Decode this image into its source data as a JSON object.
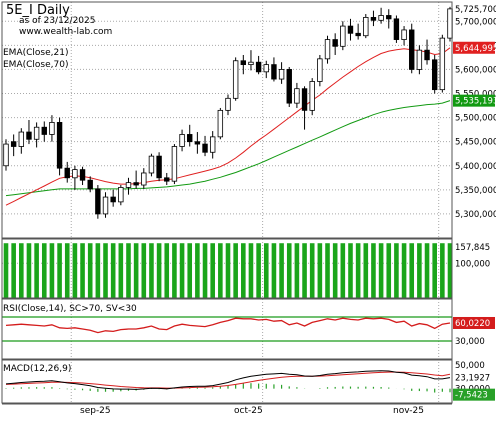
{
  "header": {
    "symbol": "5E_I Daily",
    "as_of": "as of 23/12/2025",
    "url": "www.wealth-lab.com",
    "ema21_label": "EMA(Close,21)",
    "ema70_label": "EMA(Close,70)"
  },
  "colors": {
    "up_fill": "#ffffff",
    "down_fill": "#000000",
    "ema21": "#e02020",
    "ema70": "#129a12",
    "volume": "#1aa51a",
    "rsi": "#d41c1c",
    "rsi_band": "#1a9a1a",
    "macd": "#000000",
    "macd_signal": "#d62020",
    "macd_hist": "#28a028",
    "grid": "#a9a9a9"
  },
  "chart_data": [
    {
      "type": "candlestick",
      "pane": "price",
      "ylim": [
        5250000,
        5740000
      ],
      "yticks": [
        "5,300,000",
        "5,350,000",
        "5,400,000",
        "5,450,000",
        "5,500,000",
        "5,550,000",
        "5,600,000",
        "5,650,000",
        "5,700,000"
      ],
      "xlabels": [
        "sep-25",
        "oct-25",
        "nov-25"
      ],
      "xlabel_index": [
        8,
        33,
        56
      ],
      "candles": [
        {
          "o": 5400000,
          "h": 5455000,
          "l": 5390000,
          "c": 5445000
        },
        {
          "o": 5450000,
          "h": 5465000,
          "l": 5420000,
          "c": 5440000
        },
        {
          "o": 5440000,
          "h": 5478000,
          "l": 5425000,
          "c": 5470000
        },
        {
          "o": 5470000,
          "h": 5495000,
          "l": 5445000,
          "c": 5455000
        },
        {
          "o": 5455000,
          "h": 5490000,
          "l": 5438000,
          "c": 5480000
        },
        {
          "o": 5480000,
          "h": 5492000,
          "l": 5450000,
          "c": 5465000
        },
        {
          "o": 5465000,
          "h": 5505000,
          "l": 5450000,
          "c": 5490000
        },
        {
          "o": 5490000,
          "h": 5500000,
          "l": 5380000,
          "c": 5395000
        },
        {
          "o": 5395000,
          "h": 5408000,
          "l": 5365000,
          "c": 5375000
        },
        {
          "o": 5375000,
          "h": 5400000,
          "l": 5350000,
          "c": 5392000
        },
        {
          "o": 5392000,
          "h": 5398000,
          "l": 5360000,
          "c": 5370000
        },
        {
          "o": 5370000,
          "h": 5378000,
          "l": 5345000,
          "c": 5352000
        },
        {
          "o": 5352000,
          "h": 5360000,
          "l": 5290000,
          "c": 5300000
        },
        {
          "o": 5300000,
          "h": 5345000,
          "l": 5292000,
          "c": 5335000
        },
        {
          "o": 5335000,
          "h": 5350000,
          "l": 5315000,
          "c": 5325000
        },
        {
          "o": 5325000,
          "h": 5360000,
          "l": 5318000,
          "c": 5355000
        },
        {
          "o": 5355000,
          "h": 5375000,
          "l": 5340000,
          "c": 5365000
        },
        {
          "o": 5365000,
          "h": 5390000,
          "l": 5352000,
          "c": 5360000
        },
        {
          "o": 5360000,
          "h": 5395000,
          "l": 5352000,
          "c": 5385000
        },
        {
          "o": 5385000,
          "h": 5425000,
          "l": 5378000,
          "c": 5420000
        },
        {
          "o": 5420000,
          "h": 5428000,
          "l": 5368000,
          "c": 5375000
        },
        {
          "o": 5375000,
          "h": 5385000,
          "l": 5360000,
          "c": 5368000
        },
        {
          "o": 5368000,
          "h": 5445000,
          "l": 5362000,
          "c": 5440000
        },
        {
          "o": 5440000,
          "h": 5475000,
          "l": 5430000,
          "c": 5465000
        },
        {
          "o": 5465000,
          "h": 5485000,
          "l": 5440000,
          "c": 5450000
        },
        {
          "o": 5450000,
          "h": 5470000,
          "l": 5425000,
          "c": 5445000
        },
        {
          "o": 5445000,
          "h": 5462000,
          "l": 5420000,
          "c": 5428000
        },
        {
          "o": 5428000,
          "h": 5472000,
          "l": 5415000,
          "c": 5460000
        },
        {
          "o": 5460000,
          "h": 5520000,
          "l": 5455000,
          "c": 5515000
        },
        {
          "o": 5515000,
          "h": 5548000,
          "l": 5505000,
          "c": 5540000
        },
        {
          "o": 5540000,
          "h": 5625000,
          "l": 5535000,
          "c": 5618000
        },
        {
          "o": 5618000,
          "h": 5630000,
          "l": 5590000,
          "c": 5610000
        },
        {
          "o": 5610000,
          "h": 5640000,
          "l": 5598000,
          "c": 5615000
        },
        {
          "o": 5615000,
          "h": 5628000,
          "l": 5590000,
          "c": 5595000
        },
        {
          "o": 5595000,
          "h": 5618000,
          "l": 5582000,
          "c": 5610000
        },
        {
          "o": 5610000,
          "h": 5625000,
          "l": 5575000,
          "c": 5580000
        },
        {
          "o": 5580000,
          "h": 5615000,
          "l": 5570000,
          "c": 5600000
        },
        {
          "o": 5600000,
          "h": 5605000,
          "l": 5522000,
          "c": 5530000
        },
        {
          "o": 5530000,
          "h": 5572000,
          "l": 5520000,
          "c": 5560000
        },
        {
          "o": 5560000,
          "h": 5565000,
          "l": 5475000,
          "c": 5515000
        },
        {
          "o": 5515000,
          "h": 5582000,
          "l": 5505000,
          "c": 5575000
        },
        {
          "o": 5575000,
          "h": 5630000,
          "l": 5565000,
          "c": 5622000
        },
        {
          "o": 5622000,
          "h": 5670000,
          "l": 5612000,
          "c": 5662000
        },
        {
          "o": 5662000,
          "h": 5675000,
          "l": 5630000,
          "c": 5648000
        },
        {
          "o": 5648000,
          "h": 5700000,
          "l": 5640000,
          "c": 5690000
        },
        {
          "o": 5690000,
          "h": 5705000,
          "l": 5660000,
          "c": 5675000
        },
        {
          "o": 5675000,
          "h": 5695000,
          "l": 5662000,
          "c": 5670000
        },
        {
          "o": 5670000,
          "h": 5715000,
          "l": 5665000,
          "c": 5708000
        },
        {
          "o": 5708000,
          "h": 5722000,
          "l": 5690000,
          "c": 5702000
        },
        {
          "o": 5702000,
          "h": 5728000,
          "l": 5695000,
          "c": 5712000
        },
        {
          "o": 5712000,
          "h": 5725000,
          "l": 5685000,
          "c": 5705000
        },
        {
          "o": 5705000,
          "h": 5712000,
          "l": 5655000,
          "c": 5662000
        },
        {
          "o": 5662000,
          "h": 5690000,
          "l": 5650000,
          "c": 5682000
        },
        {
          "o": 5682000,
          "h": 5695000,
          "l": 5592000,
          "c": 5600000
        },
        {
          "o": 5600000,
          "h": 5650000,
          "l": 5590000,
          "c": 5640000
        },
        {
          "o": 5640000,
          "h": 5662000,
          "l": 5610000,
          "c": 5620000
        },
        {
          "o": 5620000,
          "h": 5630000,
          "l": 5550000,
          "c": 5558000
        },
        {
          "o": 5558000,
          "h": 5672000,
          "l": 5552000,
          "c": 5665000
        },
        {
          "o": 5665000,
          "h": 5730000,
          "l": 5658000,
          "c": 5725700
        }
      ],
      "series": [
        {
          "name": "EMA(Close,21)",
          "last_label": "5,644,995",
          "values": [
            5318000,
            5326000,
            5334000,
            5342000,
            5350000,
            5358000,
            5366000,
            5374000,
            5377000,
            5379000,
            5378000,
            5375000,
            5371000,
            5367000,
            5364000,
            5362000,
            5362000,
            5363000,
            5365000,
            5368000,
            5370000,
            5371000,
            5373000,
            5377000,
            5381000,
            5385000,
            5389000,
            5393000,
            5398000,
            5406000,
            5416000,
            5428000,
            5441000,
            5453000,
            5464000,
            5476000,
            5488000,
            5500000,
            5512000,
            5524000,
            5536000,
            5547000,
            5560000,
            5572000,
            5584000,
            5595000,
            5606000,
            5616000,
            5625000,
            5633000,
            5638000,
            5641000,
            5643000,
            5641000,
            5639000,
            5636000,
            5631000,
            5633000,
            5644995
          ]
        },
        {
          "name": "EMA(Close,70)",
          "last_label": "5,535,193",
          "values": [
            5338000,
            5340000,
            5342000,
            5344000,
            5346000,
            5348000,
            5350000,
            5352000,
            5352000,
            5352000,
            5352000,
            5352000,
            5352000,
            5352000,
            5352000,
            5352000,
            5352000,
            5353000,
            5353000,
            5354000,
            5355000,
            5356000,
            5358000,
            5360000,
            5362000,
            5365000,
            5368000,
            5372000,
            5376000,
            5381000,
            5386000,
            5392000,
            5398000,
            5404000,
            5411000,
            5418000,
            5425000,
            5432000,
            5439000,
            5446000,
            5453000,
            5460000,
            5467000,
            5474000,
            5481000,
            5488000,
            5494000,
            5500000,
            5506000,
            5511000,
            5515000,
            5518000,
            5521000,
            5523000,
            5525000,
            5527000,
            5528000,
            5530000,
            5535193
          ]
        }
      ],
      "last_close_label": "5,725,700"
    },
    {
      "type": "bar",
      "pane": "volume",
      "ylim": [
        0,
        170000
      ],
      "yticks": [
        "100,000"
      ],
      "last_label": "157,845",
      "values": [
        157845,
        157845,
        157845,
        157845,
        157845,
        157845,
        157845,
        157845,
        157845,
        157845,
        157845,
        157845,
        157845,
        157845,
        157845,
        157845,
        157845,
        157845,
        157845,
        157845,
        157845,
        157845,
        157845,
        157845,
        157845,
        157845,
        157845,
        157845,
        157845,
        157845,
        157845,
        157845,
        157845,
        157845,
        157845,
        157845,
        157845,
        157845,
        157845,
        157845,
        157845,
        157845,
        157845,
        157845,
        157845,
        157845,
        157845,
        157845,
        157845,
        157845,
        157845,
        157845,
        157845,
        157845,
        157845,
        157845,
        157845,
        157845,
        157845
      ]
    },
    {
      "type": "line",
      "pane": "rsi",
      "title": "RSI(Close,14), SC>70, SV<30",
      "ylim": [
        0,
        100
      ],
      "bands": [
        30,
        70
      ],
      "yticks": [
        "30,000"
      ],
      "last_label": "60,0220",
      "values": [
        56,
        57,
        58,
        57,
        56,
        55,
        57,
        52,
        51,
        52,
        50,
        48,
        44,
        47,
        46,
        49,
        50,
        50,
        52,
        55,
        50,
        49,
        55,
        58,
        56,
        55,
        54,
        57,
        61,
        64,
        68,
        67,
        67,
        65,
        66,
        63,
        64,
        57,
        60,
        55,
        61,
        64,
        67,
        65,
        68,
        66,
        65,
        68,
        67,
        68,
        66,
        61,
        63,
        55,
        59,
        57,
        51,
        58,
        60.022
      ]
    },
    {
      "type": "line",
      "pane": "macd",
      "title": "MACD(12,26,9)",
      "ylim": [
        -30000,
        60000
      ],
      "yticks": [
        "50,000"
      ],
      "labels": {
        "macd": "23,1927",
        "signal": "30,0000",
        "hist": "-7,5423"
      },
      "series": [
        {
          "name": "MACD",
          "values": [
            10000,
            11500,
            13000,
            14000,
            15000,
            15500,
            16500,
            14500,
            12000,
            10500,
            8500,
            6000,
            2500,
            1000,
            -500,
            -1000,
            -1000,
            -1500,
            -500,
            1000,
            500,
            -500,
            1500,
            3500,
            4500,
            5000,
            5000,
            6500,
            9500,
            13000,
            18500,
            22500,
            26000,
            28000,
            30000,
            31000,
            32000,
            30000,
            29000,
            26500,
            26000,
            27500,
            30000,
            31500,
            33500,
            34500,
            35000,
            36500,
            37000,
            37500,
            37000,
            34500,
            33000,
            28500,
            27000,
            25000,
            20500,
            20500,
            23192.7
          ]
        },
        {
          "name": "Signal",
          "values": [
            9000,
            9500,
            10200,
            11000,
            11800,
            12500,
            13300,
            13500,
            13200,
            12600,
            11800,
            10700,
            9100,
            7500,
            5900,
            4500,
            3400,
            2400,
            1800,
            1700,
            1500,
            1100,
            1200,
            1700,
            2300,
            2800,
            3300,
            3900,
            5000,
            6600,
            8900,
            11600,
            14500,
            17300,
            19800,
            22000,
            24000,
            25200,
            25900,
            26000,
            26000,
            26300,
            27000,
            27900,
            29000,
            30100,
            31100,
            32200,
            33200,
            34000,
            34600,
            34600,
            34300,
            33200,
            32000,
            30600,
            28600,
            27000,
            30000
          ]
        }
      ],
      "hist": [
        1000,
        2000,
        2800,
        3000,
        3200,
        3000,
        3200,
        1000,
        -1200,
        -2100,
        -3300,
        -4700,
        -6600,
        -6500,
        -6400,
        -5500,
        -4400,
        -3900,
        -2300,
        -700,
        -1000,
        -1600,
        300,
        1800,
        2200,
        2200,
        1700,
        2600,
        4500,
        6400,
        9600,
        10900,
        11500,
        10700,
        10200,
        9000,
        8000,
        4800,
        3100,
        500,
        0,
        1200,
        3000,
        3600,
        4500,
        4400,
        3900,
        4300,
        3800,
        3500,
        2400,
        -100,
        -1300,
        -4700,
        -5000,
        -5600,
        -8100,
        -6500,
        -7542.3
      ]
    }
  ]
}
